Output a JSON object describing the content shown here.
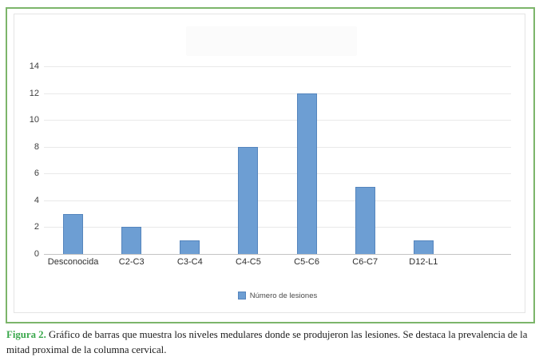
{
  "figure": {
    "caption_label": "Figura 2.",
    "caption_text": "Gráfico de barras que muestra los niveles medulares donde se produjeron las lesiones. Se destaca la prevalencia de la mitad proximal de la columna cervical."
  },
  "chart_data": {
    "type": "bar",
    "categories": [
      "Desconocida",
      "C2-C3",
      "C3-C4",
      "C4-C5",
      "C5-C6",
      "C6-C7",
      "D12-L1"
    ],
    "values": [
      3,
      2,
      1,
      8,
      12,
      5,
      1
    ],
    "series_name": "Número de lesiones",
    "title": "",
    "xlabel": "",
    "ylabel": "",
    "ylim": [
      0,
      14
    ],
    "yticks": [
      0,
      2,
      4,
      6,
      8,
      10,
      12,
      14
    ],
    "grid": true,
    "legend_position": "bottom-center",
    "extra_empty_category_slots": 1,
    "colors": {
      "bar_fill": "#6d9ed3",
      "bar_border": "#5585bd",
      "box_border": "#7cb56a",
      "caption_green": "#3aa84c",
      "gridline": "#e9e9e9"
    }
  }
}
